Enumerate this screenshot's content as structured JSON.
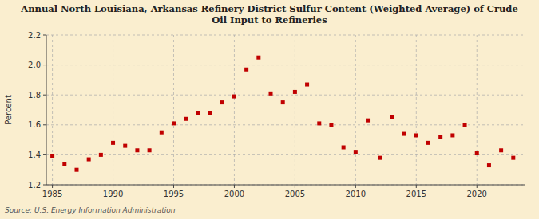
{
  "chart_data": {
    "type": "scatter",
    "title": "Annual North Louisiana, Arkansas Refinery District Sulfur Content (Weighted Average) of Crude\nOil Input to Refineries",
    "ylabel": "Percent",
    "annotations": [
      "Source: U.S. Energy Information Administration"
    ],
    "x": [
      1985,
      1986,
      1987,
      1988,
      1989,
      1990,
      1991,
      1992,
      1993,
      1994,
      1995,
      1996,
      1997,
      1998,
      1999,
      2000,
      2001,
      2002,
      2003,
      2004,
      2005,
      2006,
      2007,
      2008,
      2009,
      2010,
      2011,
      2012,
      2013,
      2014,
      2015,
      2016,
      2017,
      2018,
      2019,
      2020,
      2021,
      2022,
      2023
    ],
    "values": [
      1.39,
      1.34,
      1.3,
      1.37,
      1.4,
      1.48,
      1.46,
      1.43,
      1.43,
      1.55,
      1.61,
      1.64,
      1.68,
      1.68,
      1.75,
      1.79,
      1.97,
      2.05,
      1.81,
      1.75,
      1.82,
      1.87,
      1.61,
      1.6,
      1.45,
      1.42,
      1.63,
      1.38,
      1.65,
      1.54,
      1.53,
      1.48,
      1.52,
      1.53,
      1.6,
      1.41,
      1.33,
      1.43,
      1.38
    ],
    "color": "#c00000",
    "marker": "square",
    "xlim": [
      1984.5,
      2024
    ],
    "xticks": [
      1985,
      1990,
      1995,
      2000,
      2005,
      2010,
      2015,
      2020
    ],
    "ylim": [
      1.2,
      2.2
    ],
    "yticks": [
      1.2,
      1.4,
      1.6,
      1.8,
      {
        "value": 2.0,
        "label": "2.0"
      },
      2.2
    ],
    "grid": true
  }
}
